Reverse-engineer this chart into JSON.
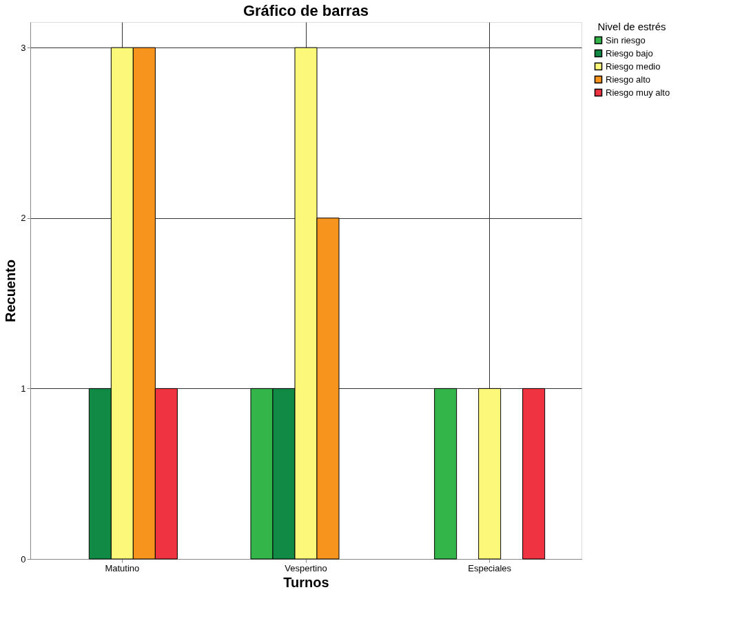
{
  "chart_data": {
    "type": "bar",
    "title": "Gráfico de barras",
    "xlabel": "Turnos",
    "ylabel": "Recuento",
    "legend_title": "Nivel de estrés",
    "categories": [
      "Matutino",
      "Vespertino",
      "Especiales"
    ],
    "series": [
      {
        "name": "Sin riesgo",
        "color": "#33b549",
        "values": [
          null,
          1,
          1
        ]
      },
      {
        "name": "Riesgo bajo",
        "color": "#118a45",
        "values": [
          1,
          1,
          null
        ]
      },
      {
        "name": "Riesgo medio",
        "color": "#fbf87a",
        "values": [
          3,
          3,
          1
        ]
      },
      {
        "name": "Riesgo alto",
        "color": "#f7941d",
        "values": [
          3,
          2,
          null
        ]
      },
      {
        "name": "Riesgo muy alto",
        "color": "#ef3340",
        "values": [
          1,
          null,
          1
        ]
      }
    ],
    "ylim": [
      0,
      3.15
    ],
    "yticks": [
      0,
      1,
      2,
      3
    ],
    "grid": true,
    "legend": "right"
  }
}
